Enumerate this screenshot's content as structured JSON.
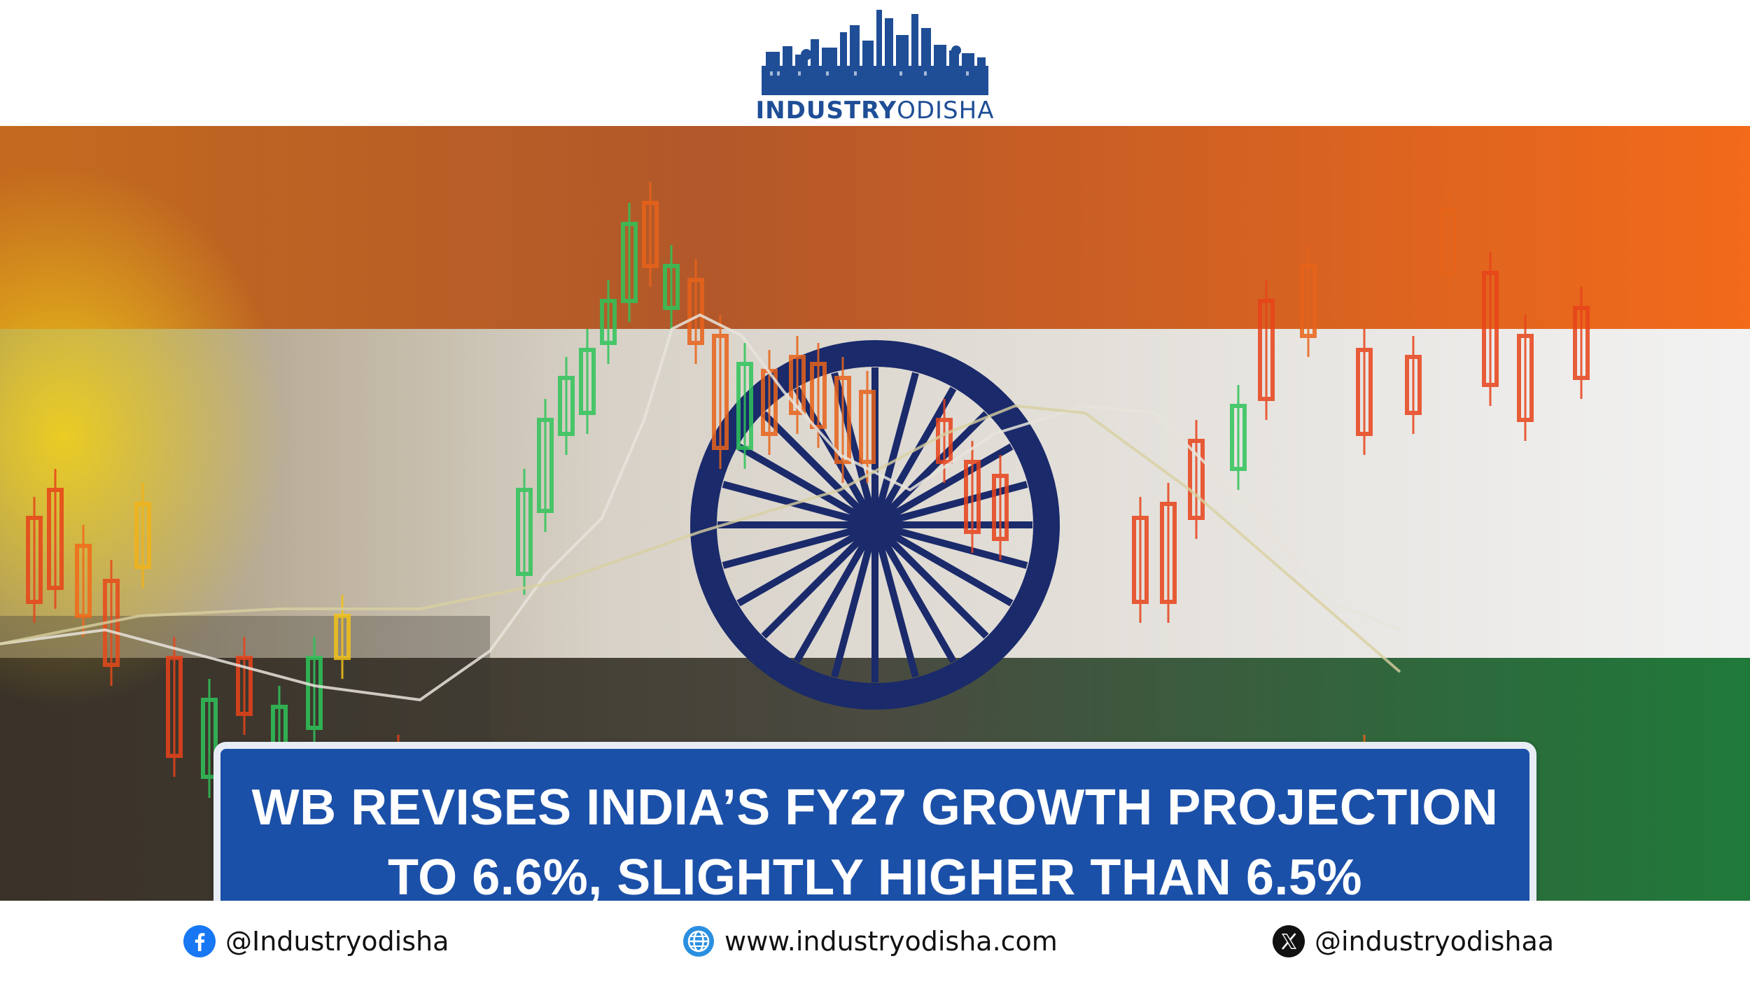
{
  "header": {
    "logo": {
      "name_bold": "INDUSTRY",
      "name_regular": "ODISHA",
      "icon": "city-skyline-icon"
    }
  },
  "hero": {
    "description_icons": [
      "candlestick-chart-graphic",
      "india-flag-graphic",
      "ashoka-chakra-graphic"
    ],
    "headline_line1": "WB REVISES INDIA’S FY27 GROWTH PROJECTION",
    "headline_line2": "TO 6.6%, SLIGHTLY HIGHER THAN 6.5%"
  },
  "footer": {
    "facebook": {
      "icon": "facebook-icon",
      "handle": "@Industryodisha"
    },
    "website": {
      "icon": "globe-icon",
      "url": "www.industryodisha.com"
    },
    "x": {
      "icon": "x-icon",
      "handle": "@industryodishaa"
    }
  },
  "colors": {
    "brand_blue": "#1f4e96",
    "headline_bg": "#1b50a8",
    "saffron": "#e8531a",
    "green": "#1f7a3a",
    "chakra_navy": "#1a2a6b"
  }
}
